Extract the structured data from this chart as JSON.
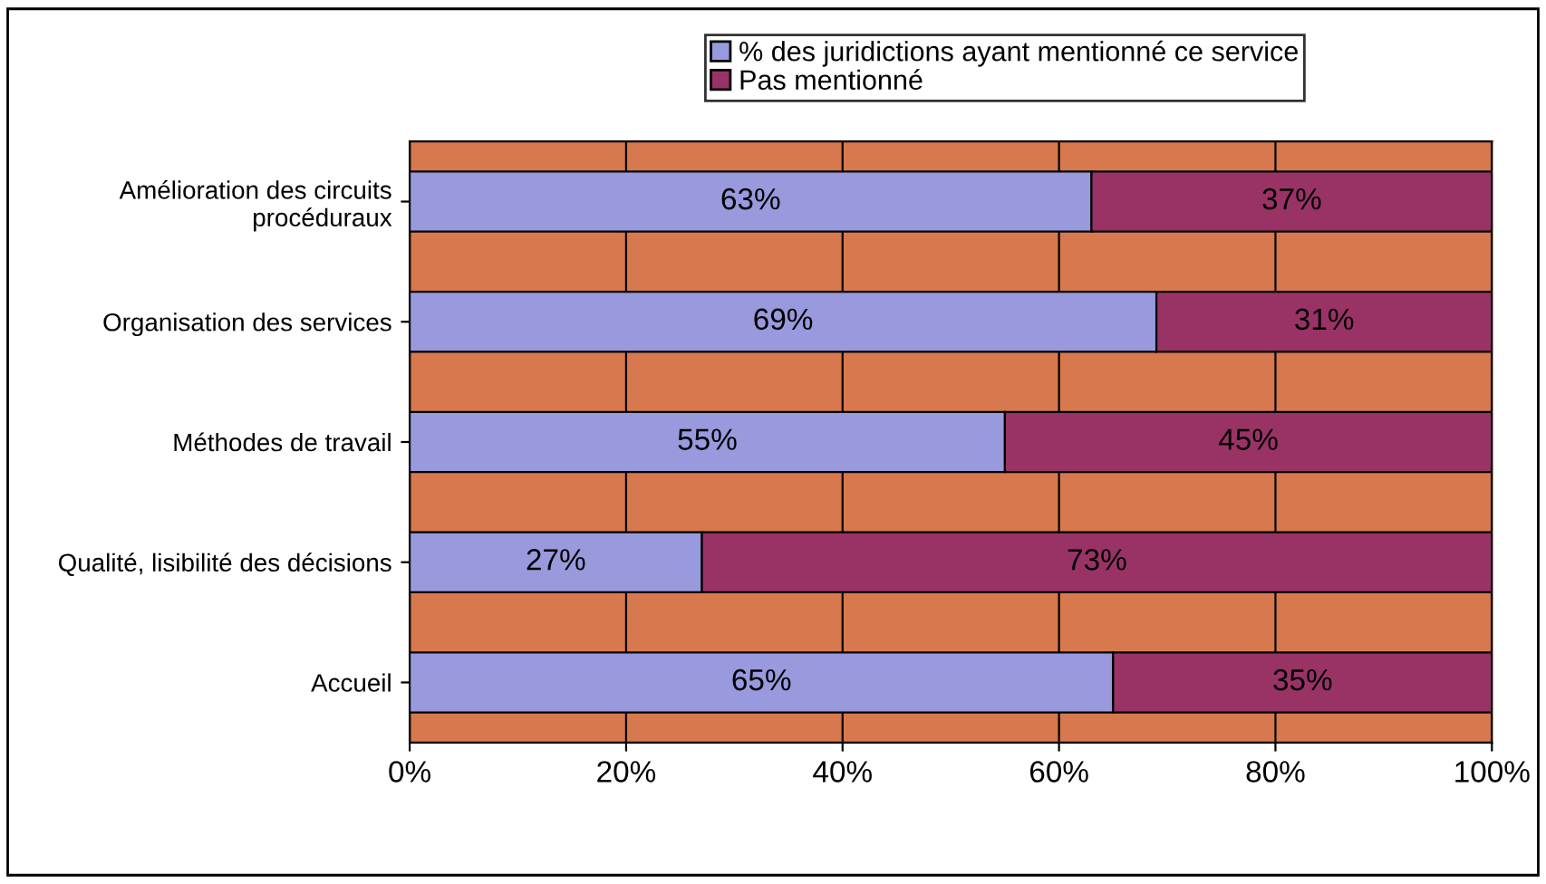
{
  "chart_data": {
    "type": "bar",
    "orientation": "horizontal",
    "stacked": true,
    "categories": [
      "Amélioration des circuits\nprocéduraux",
      "Organisation des services",
      "Méthodes de travail",
      "Qualité, lisibilité des décisions",
      "Accueil"
    ],
    "series": [
      {
        "name": "% des juridictions ayant mentionné ce service",
        "color": "#9999dd",
        "values": [
          63,
          69,
          55,
          27,
          65
        ],
        "value_labels": [
          "63%",
          "69%",
          "55%",
          "27%",
          "65%"
        ]
      },
      {
        "name": "Pas mentionné",
        "color": "#993366",
        "values": [
          37,
          31,
          45,
          73,
          35
        ],
        "value_labels": [
          "37%",
          "31%",
          "45%",
          "73%",
          "35%"
        ]
      }
    ],
    "xlim": [
      0,
      100
    ],
    "xticks": [
      {
        "value": 0,
        "label": "0%"
      },
      {
        "value": 20,
        "label": "20%"
      },
      {
        "value": 40,
        "label": "40%"
      },
      {
        "value": 60,
        "label": "60%"
      },
      {
        "value": 80,
        "label": "80%"
      },
      {
        "value": 100,
        "label": "100%"
      }
    ],
    "grid": "x",
    "legend": "top"
  }
}
